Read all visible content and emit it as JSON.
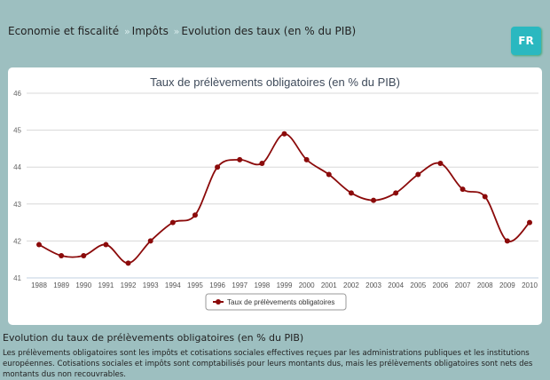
{
  "breadcrumb": [
    "Economie et fiscalité",
    "Impôts",
    "Evolution des taux (en % du PIB)"
  ],
  "breadcrumb_separator": "»",
  "language_button": "FR",
  "chart_data": {
    "type": "line",
    "title": "Taux de prélèvements obligatoires (en % du PIB)",
    "categories": [
      "1988",
      "1989",
      "1990",
      "1991",
      "1992",
      "1993",
      "1994",
      "1995",
      "1996",
      "1997",
      "1998",
      "1999",
      "2000",
      "2001",
      "2002",
      "2003",
      "2004",
      "2005",
      "2006",
      "2007",
      "2008",
      "2009",
      "2010"
    ],
    "series": [
      {
        "name": "Taux de prélèvements obligatoires",
        "values": [
          41.9,
          41.6,
          41.6,
          41.9,
          41.4,
          42.0,
          42.5,
          42.7,
          44.0,
          44.2,
          44.1,
          44.9,
          44.2,
          43.8,
          43.3,
          43.1,
          43.3,
          43.8,
          44.1,
          43.4,
          43.2,
          42.0,
          42.5
        ],
        "color": "#8b0a0a"
      }
    ],
    "ylim": [
      41,
      46
    ],
    "yticks": [
      41,
      42,
      43,
      44,
      45,
      46
    ],
    "grid": true,
    "legend": "bottom-center",
    "smooth": true
  },
  "description": {
    "title": "Evolution du taux de prélèvements obligatoires (en % du PIB)",
    "text": "Les prélèvements obligatoires sont les impôts et cotisations sociales effectives reçues par les administrations publiques et les institutions européennes. Cotisations sociales et impôts sont comptabilisés pour leurs montants dus, mais les prélèvements obligatoires sont nets des montants dus non recouvrables."
  }
}
